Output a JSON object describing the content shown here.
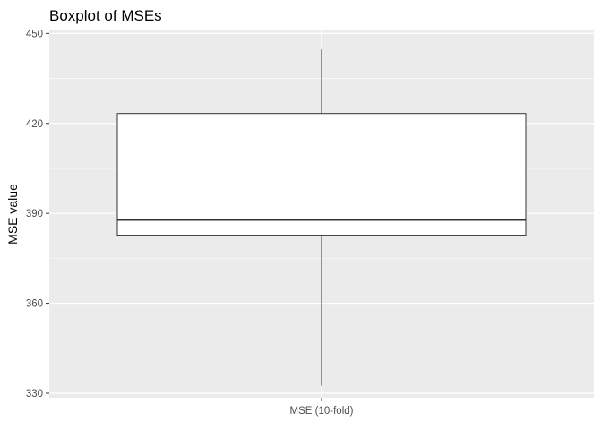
{
  "chart_data": {
    "type": "boxplot",
    "title": "Boxplot of MSEs",
    "xlabel": "",
    "ylabel": "MSE value",
    "categories": [
      "MSE (10-fold)"
    ],
    "boxes": [
      {
        "category": "MSE (10-fold)",
        "min": 332.5,
        "q1": 382.7,
        "median": 387.8,
        "q3": 423.3,
        "max": 444.7
      }
    ],
    "yticks": [
      330,
      360,
      390,
      420,
      450
    ],
    "ylim": [
      328.5,
      451
    ],
    "grid": true,
    "legend": "none",
    "colors": {
      "panel_background": "#ebebeb",
      "grid": "#ffffff",
      "box_fill": "#ffffff",
      "box_stroke": "#333333"
    }
  }
}
